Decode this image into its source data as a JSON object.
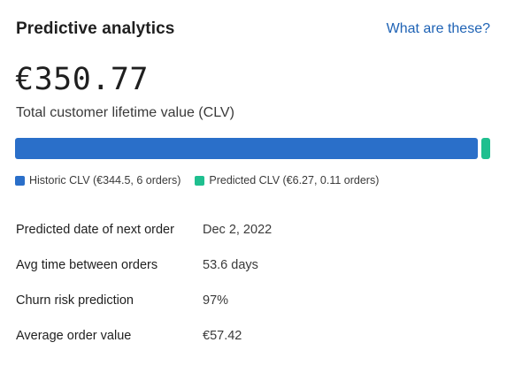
{
  "card": {
    "title": "Predictive analytics",
    "help_link": "What are these?",
    "clv_value": "€350.77",
    "clv_label": "Total customer lifetime value (CLV)"
  },
  "clv_breakdown": {
    "historic": {
      "value": 344.5,
      "color": "#2a6fc9",
      "legend": "Historic CLV (€344.5, 6 orders)"
    },
    "predicted": {
      "value": 6.27,
      "color": "#1fbf8f",
      "legend": "Predicted CLV (€6.27, 0.11 orders)"
    }
  },
  "details": [
    {
      "label": "Predicted date of next order",
      "value": "Dec 2, 2022"
    },
    {
      "label": "Avg time between orders",
      "value": "53.6 days"
    },
    {
      "label": "Churn risk prediction",
      "value": "97%"
    },
    {
      "label": "Average order value",
      "value": "€57.42"
    }
  ]
}
